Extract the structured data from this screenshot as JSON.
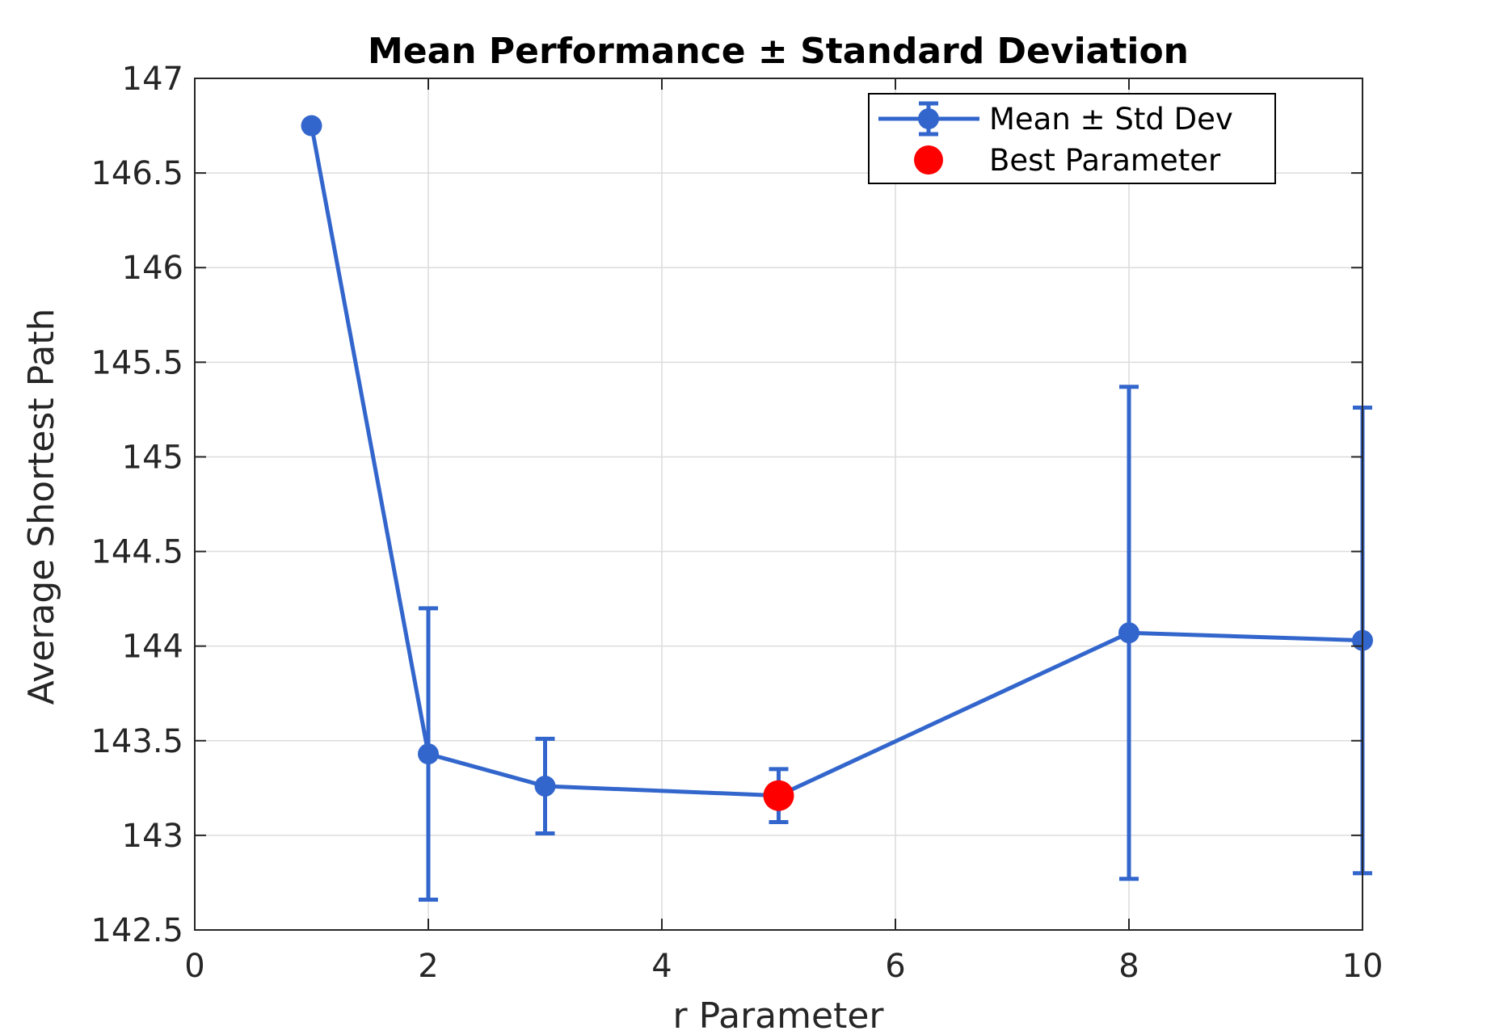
{
  "colors": {
    "series": "#3366CC",
    "best": "#FF0000",
    "grid": "#DCDCDC",
    "axis": "#262626",
    "background": "#FFFFFF"
  },
  "chart_data": {
    "type": "line",
    "title": "Mean Performance ± Standard Deviation",
    "xlabel": "r Parameter",
    "ylabel": "Average Shortest Path",
    "xlim": [
      0,
      10
    ],
    "ylim": [
      142.5,
      147
    ],
    "xticks": [
      0,
      2,
      4,
      6,
      8,
      10
    ],
    "xtick_labels": [
      "0",
      "2",
      "4",
      "6",
      "8",
      "10"
    ],
    "yticks": [
      142.5,
      143,
      143.5,
      144,
      144.5,
      145,
      145.5,
      146,
      146.5,
      147
    ],
    "ytick_labels": [
      "142.5",
      "143",
      "143.5",
      "144",
      "144.5",
      "145",
      "145.5",
      "146",
      "146.5",
      "147"
    ],
    "grid": true,
    "legend_position": "top-right",
    "series": [
      {
        "name": "Mean ± Std Dev",
        "kind": "errorbar",
        "x": [
          1,
          2,
          3,
          5,
          8,
          10
        ],
        "y": [
          146.75,
          143.43,
          143.26,
          143.21,
          144.07,
          144.03
        ],
        "yerr": [
          0,
          0.77,
          0.25,
          0.14,
          1.3,
          1.23
        ]
      },
      {
        "name": "Best Parameter",
        "kind": "marker",
        "x": [
          5
        ],
        "y": [
          143.21
        ]
      }
    ]
  }
}
